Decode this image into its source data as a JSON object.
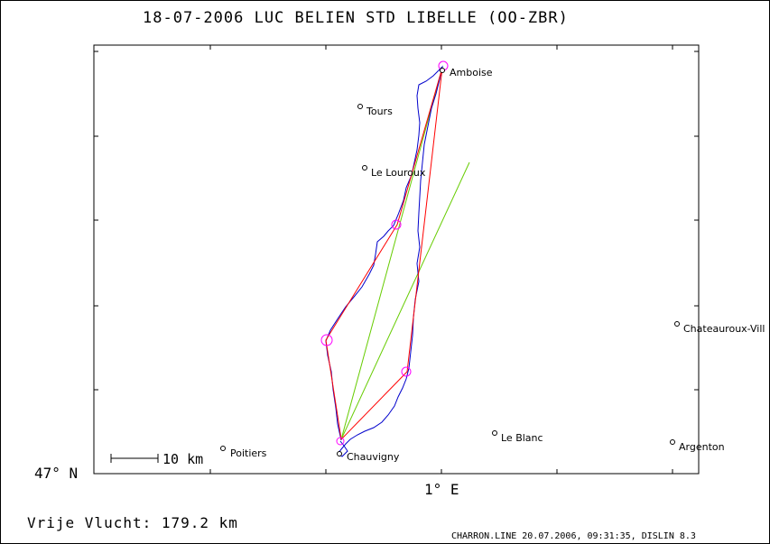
{
  "header": {
    "title": "18-07-2006   LUC BELIEN   STD LIBELLE (OO-ZBR)"
  },
  "axes": {
    "lat_label": "47° N",
    "lon_label": "1° E"
  },
  "scale_bar": {
    "label": "10 km"
  },
  "cities": [
    {
      "name": "Amboise"
    },
    {
      "name": "Tours"
    },
    {
      "name": "Le Louroux"
    },
    {
      "name": "Chateauroux-Vill"
    },
    {
      "name": "Le Blanc"
    },
    {
      "name": "Argenton"
    },
    {
      "name": "Poitiers"
    },
    {
      "name": "Chauvigny"
    }
  ],
  "footer": {
    "distance_label": "Vrije Vlucht:  179.2 km",
    "file_info": "CHARRON.LINE 20.07.2006, 09:31:35, DISLIN 8.3"
  },
  "colors": {
    "frame": "#000000",
    "track": "#0000cc",
    "task": "#ff0000",
    "sector": "#66cc00",
    "turnpoint": "#ff00ff"
  }
}
